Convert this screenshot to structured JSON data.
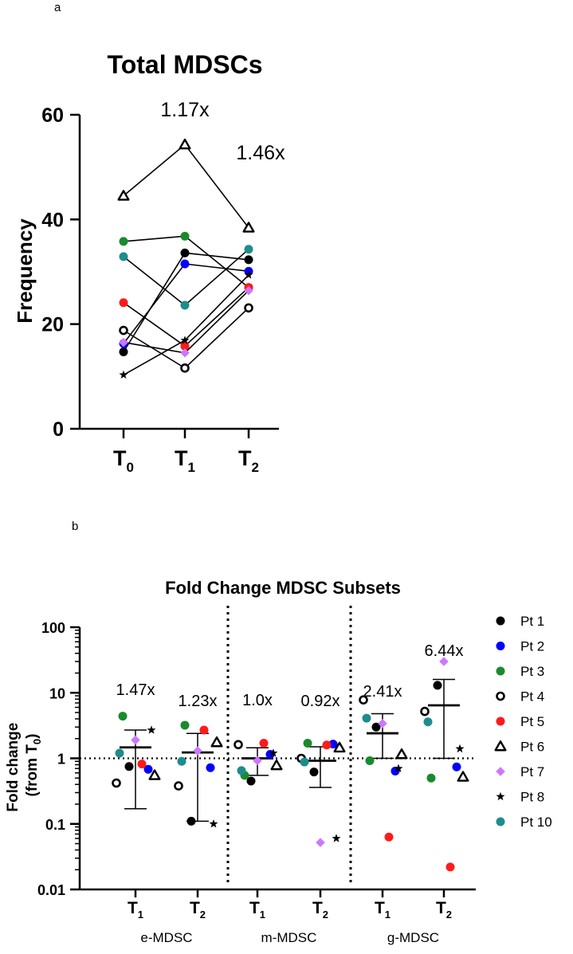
{
  "colors": {
    "pt1": "#000000",
    "pt2": "#0000ff",
    "pt3": "#1a8a2e",
    "pt4": "#ffffff",
    "pt5": "#ff1a1a",
    "pt6": "#ffffff",
    "pt7": "#cc77ff",
    "pt8": "#000000",
    "pt10": "#1e8c8c"
  },
  "chart_data": [
    {
      "panel": "a",
      "type": "line",
      "title": "Total MDSCs",
      "ylabel": "Frequency",
      "xlabel": "",
      "ylim": [
        0,
        60
      ],
      "yticks": [
        "0",
        "20",
        "40",
        "60"
      ],
      "categories": [
        {
          "base": "T",
          "sub": "0"
        },
        {
          "base": "T",
          "sub": "1"
        },
        {
          "base": "T",
          "sub": "2"
        }
      ],
      "annotations": [
        {
          "text": "1.17x",
          "at": "above T1"
        },
        {
          "text": "1.46x",
          "at": "above T2"
        }
      ],
      "series": [
        {
          "name": "Pt 1",
          "marker": "circle-filled",
          "color": "#000000",
          "values": [
            14.7,
            33.6,
            32.3
          ]
        },
        {
          "name": "Pt 2",
          "marker": "circle-filled",
          "color": "#0000ff",
          "values": [
            16.3,
            31.5,
            30.1
          ]
        },
        {
          "name": "Pt 3",
          "marker": "circle-filled",
          "color": "#1a8a2e",
          "values": [
            35.8,
            36.8,
            27.0
          ]
        },
        {
          "name": "Pt 4",
          "marker": "circle-open",
          "color": "#000000",
          "values": [
            18.8,
            11.6,
            23.1
          ]
        },
        {
          "name": "Pt 5",
          "marker": "circle-filled",
          "color": "#ff1a1a",
          "values": [
            24.1,
            15.8,
            27.0
          ]
        },
        {
          "name": "Pt 6",
          "marker": "triangle-open",
          "color": "#000000",
          "values": [
            44.5,
            54.3,
            38.4
          ]
        },
        {
          "name": "Pt 7",
          "marker": "diamond",
          "color": "#cc77ff",
          "values": [
            16.5,
            14.5,
            26.4
          ]
        },
        {
          "name": "Pt 8",
          "marker": "star",
          "color": "#000000",
          "values": [
            10.3,
            16.9,
            29.4
          ]
        },
        {
          "name": "Pt 10",
          "marker": "circle-filled",
          "color": "#1e8c8c",
          "values": [
            32.9,
            23.6,
            34.3
          ]
        }
      ]
    },
    {
      "panel": "b",
      "type": "scatter",
      "title": "Fold Change MDSC Subsets",
      "ylabel_line1": "Fold change",
      "ylabel_line2_base": "(from T",
      "ylabel_line2_sub": "0",
      "ylabel_line2_end": ")",
      "yscale": "log",
      "ylim": [
        0.01,
        100
      ],
      "yticks": [
        "0.01",
        "0.1",
        "1",
        "10",
        "100"
      ],
      "reference_line": 1,
      "groups": [
        {
          "name": "e-MDSC",
          "ticks": [
            {
              "base": "T",
              "sub": "1"
            },
            {
              "base": "T",
              "sub": "2"
            }
          ],
          "fold": [
            "1.47x",
            "1.23x"
          ]
        },
        {
          "name": "m-MDSC",
          "ticks": [
            {
              "base": "T",
              "sub": "1"
            },
            {
              "base": "T",
              "sub": "2"
            }
          ],
          "fold": [
            "1.0x",
            "0.92x"
          ]
        },
        {
          "name": "g-MDSC",
          "ticks": [
            {
              "base": "T",
              "sub": "1"
            },
            {
              "base": "T",
              "sub": "2"
            }
          ],
          "fold": [
            "2.41x",
            "6.44x"
          ]
        }
      ],
      "summary": [
        {
          "mean": 1.47,
          "low": 0.17,
          "high": 2.7
        },
        {
          "mean": 1.23,
          "low": 0.11,
          "high": 2.4
        },
        {
          "mean": 1.0,
          "low": 0.55,
          "high": 1.45
        },
        {
          "mean": 0.92,
          "low": 0.36,
          "high": 1.5
        },
        {
          "mean": 2.41,
          "low": 1.0,
          "high": 4.8
        },
        {
          "mean": 6.44,
          "low": 1.0,
          "high": 16.0
        }
      ],
      "series": [
        {
          "name": "Pt 1",
          "marker": "circle-filled",
          "color": "#000000",
          "values": [
            0.75,
            0.11,
            0.45,
            0.62,
            3.0,
            13.0
          ]
        },
        {
          "name": "Pt 2",
          "marker": "circle-filled",
          "color": "#0000ff",
          "values": [
            0.68,
            0.72,
            1.15,
            1.65,
            0.64,
            0.74
          ]
        },
        {
          "name": "Pt 3",
          "marker": "circle-filled",
          "color": "#1a8a2e",
          "values": [
            4.4,
            3.2,
            0.55,
            1.7,
            0.92,
            0.5
          ]
        },
        {
          "name": "Pt 4",
          "marker": "circle-open",
          "color": "#000000",
          "values": [
            0.42,
            0.38,
            1.62,
            1.0,
            7.8,
            5.2
          ]
        },
        {
          "name": "Pt 5",
          "marker": "circle-filled",
          "color": "#ff1a1a",
          "values": [
            0.82,
            2.7,
            1.7,
            1.6,
            0.063,
            0.022
          ]
        },
        {
          "name": "Pt 6",
          "marker": "triangle-open",
          "color": "#000000",
          "values": [
            0.55,
            1.75,
            0.78,
            1.45,
            1.15,
            0.52
          ]
        },
        {
          "name": "Pt 7",
          "marker": "diamond",
          "color": "#cc77ff",
          "values": [
            1.9,
            1.3,
            0.92,
            0.052,
            3.4,
            30.0
          ]
        },
        {
          "name": "Pt 8",
          "marker": "star",
          "color": "#000000",
          "values": [
            2.7,
            0.1,
            1.2,
            0.06,
            0.7,
            1.4
          ]
        },
        {
          "name": "Pt 10",
          "marker": "circle-filled",
          "color": "#1e8c8c",
          "values": [
            1.2,
            0.9,
            0.65,
            0.88,
            4.1,
            3.6
          ]
        }
      ],
      "legend": {
        "placement": "right",
        "entries": [
          {
            "label": "Pt 1",
            "marker": "circle-filled",
            "color": "#000000"
          },
          {
            "label": "Pt 2",
            "marker": "circle-filled",
            "color": "#0000ff"
          },
          {
            "label": "Pt 3",
            "marker": "circle-filled",
            "color": "#1a8a2e"
          },
          {
            "label": "Pt 4",
            "marker": "circle-open",
            "color": "#000000"
          },
          {
            "label": "Pt 5",
            "marker": "circle-filled",
            "color": "#ff1a1a"
          },
          {
            "label": "Pt 6",
            "marker": "triangle-open",
            "color": "#000000"
          },
          {
            "label": "Pt 7",
            "marker": "diamond",
            "color": "#cc77ff"
          },
          {
            "label": "Pt 8",
            "marker": "star",
            "color": "#000000"
          },
          {
            "label": "Pt 10",
            "marker": "circle-filled",
            "color": "#1e8c8c"
          }
        ]
      }
    }
  ]
}
